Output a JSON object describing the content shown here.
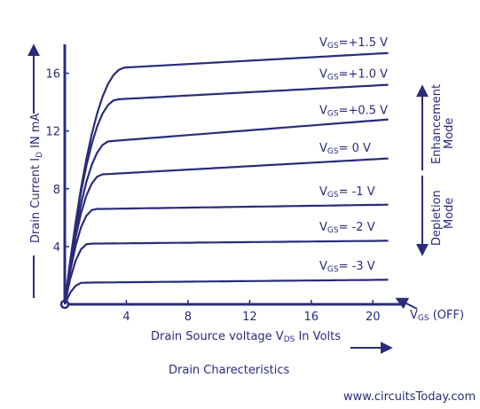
{
  "chart_data": {
    "type": "line",
    "title": "Drain Charecteristics",
    "xlabel": "Drain Source voltage VDS In Volts",
    "ylabel": "Drain Current ID IN mA",
    "xlim": [
      0,
      22
    ],
    "ylim": [
      0,
      18
    ],
    "xticks": [
      4,
      8,
      12,
      16,
      20
    ],
    "yticks": [
      4,
      8,
      12,
      16
    ],
    "series": [
      {
        "name": "VGS=+1.5 V",
        "vgs_prefix": "V",
        "vgs_sub": "GS",
        "vgs_rest": "=+1.5 V",
        "sat_current": 16.4,
        "end_current": 17.4,
        "knee_x": 4
      },
      {
        "name": "VGS=+1.0 V",
        "vgs_prefix": "V",
        "vgs_sub": "GS",
        "vgs_rest": "=+1.0 V",
        "sat_current": 14.2,
        "end_current": 15.2,
        "knee_x": 3.5
      },
      {
        "name": "VGS=+0.5 V",
        "vgs_prefix": "V",
        "vgs_sub": "GS",
        "vgs_rest": "=+0.5 V",
        "sat_current": 11.3,
        "end_current": 12.8,
        "knee_x": 3
      },
      {
        "name": "VGS= 0 V",
        "vgs_prefix": "V",
        "vgs_sub": "GS",
        "vgs_rest": "= 0 V",
        "sat_current": 9.0,
        "end_current": 10.1,
        "knee_x": 2.5
      },
      {
        "name": "VGS= -1 V",
        "vgs_prefix": "V",
        "vgs_sub": "GS",
        "vgs_rest": "= -1 V",
        "sat_current": 6.6,
        "end_current": 6.9,
        "knee_x": 2
      },
      {
        "name": "VGS= -2 V",
        "vgs_prefix": "V",
        "vgs_sub": "GS",
        "vgs_rest": "= -2 V",
        "sat_current": 4.2,
        "end_current": 4.4,
        "knee_x": 1.6
      },
      {
        "name": "VGS= -3 V",
        "vgs_prefix": "V",
        "vgs_sub": "GS",
        "vgs_rest": "= -3 V",
        "sat_current": 1.5,
        "end_current": 1.7,
        "knee_x": 1.2
      }
    ],
    "annotations": {
      "enhancement": "Enhancement Mode",
      "enhancement_line1": "Enhancement",
      "enhancement_line2": "Mode",
      "depletion": "Depletion Mode",
      "depletion_line1": "Depletion",
      "depletion_line2": "Mode",
      "vgs_off": "VGS (OFF)",
      "vgs_off_prefix": "V",
      "vgs_off_sub": "GS",
      "vgs_off_rest": " (OFF)"
    },
    "ylabel_parts": {
      "pre": "Drain Current I",
      "sub": "D",
      "post": " IN mA"
    },
    "xlabel_parts": {
      "pre": "Drain Source voltage V",
      "sub": "DS",
      "post": " In Volts"
    },
    "grid": false
  },
  "watermark": "www.circuitsToday.com",
  "colors": {
    "ink": "#2b2b7a",
    "background": "#ffffff"
  }
}
